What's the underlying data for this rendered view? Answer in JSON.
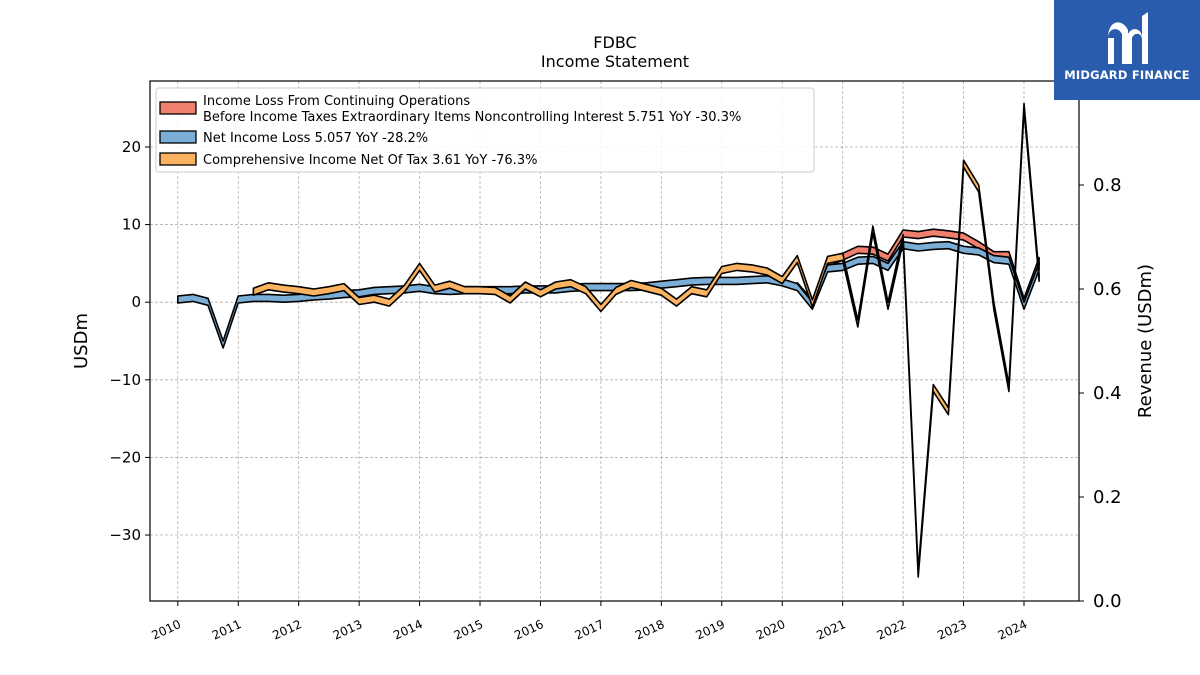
{
  "title": "FDBC",
  "subtitle": "Income Statement",
  "brand": {
    "name": "MIDGARD FINANCE",
    "color": "#2a5cad"
  },
  "chart_data": {
    "type": "area",
    "ylabel_left": "USDm",
    "ylabel_right": "Revenue (USDm)",
    "ylim_left": [
      -38.5,
      28.5
    ],
    "ylim_right": [
      0.0,
      1.0
    ],
    "yticks_left": [
      -30,
      -20,
      -10,
      0,
      10,
      20
    ],
    "ytick_labels_left": [
      "−30",
      "−20",
      "−10",
      "0",
      "10",
      "20"
    ],
    "yticks_right": [
      0.0,
      0.2,
      0.4,
      0.6,
      0.8
    ],
    "ytick_labels_right": [
      "0.0",
      "0.2",
      "0.4",
      "0.6",
      "0.8"
    ],
    "xlim": [
      2009.54,
      2024.91
    ],
    "xticks": [
      2010,
      2011,
      2012,
      2013,
      2014,
      2015,
      2016,
      2017,
      2018,
      2019,
      2020,
      2021,
      2022,
      2023,
      2024
    ],
    "xtick_labels": [
      "2010",
      "2011",
      "2012",
      "2013",
      "2014",
      "2015",
      "2016",
      "2017",
      "2018",
      "2019",
      "2020",
      "2021",
      "2022",
      "2023",
      "2024"
    ],
    "grid": true,
    "legend_position": "top-left",
    "series": [
      {
        "name": "Income Loss From Continuing Operations Before Income Taxes Extraordinary Items Noncontrolling Interest",
        "legend_line1": "Income Loss From Continuing Operations",
        "legend_line2": "Before Income Taxes Extraordinary Items Noncontrolling Interest  5.751 YoY -30.3%",
        "color": "#f07f6e",
        "x": [
          2020.25,
          2020.5,
          2020.75,
          2021.0,
          2021.25,
          2021.5,
          2021.75,
          2022.0,
          2022.25,
          2022.5,
          2022.75,
          2023.0,
          2023.25,
          2023.5,
          2023.75,
          2024.0,
          2024.25
        ],
        "values": [
          2.5,
          0.3,
          5.5,
          6.3,
          7.2,
          7.1,
          6.2,
          9.3,
          9.1,
          9.4,
          9.2,
          8.9,
          7.8,
          6.5,
          6.5,
          0.5,
          5.751
        ]
      },
      {
        "name": "Net Income Loss",
        "legend_line1": "Net Income Loss  5.057 YoY -28.2%",
        "color": "#7aaed6",
        "x": [
          2010.0,
          2010.25,
          2010.5,
          2010.75,
          2011.0,
          2011.25,
          2011.5,
          2011.75,
          2012.0,
          2012.25,
          2012.5,
          2012.75,
          2013.0,
          2013.25,
          2013.5,
          2013.75,
          2014.0,
          2014.25,
          2014.5,
          2014.75,
          2015.0,
          2015.25,
          2015.5,
          2015.75,
          2016.0,
          2016.25,
          2016.5,
          2016.75,
          2017.0,
          2017.25,
          2017.5,
          2017.75,
          2018.0,
          2018.25,
          2018.5,
          2018.75,
          2019.0,
          2019.25,
          2019.5,
          2019.75,
          2020.0,
          2020.25,
          2020.5,
          2020.75,
          2021.0,
          2021.25,
          2021.5,
          2021.75,
          2022.0,
          2022.25,
          2022.5,
          2022.75,
          2023.0,
          2023.25,
          2023.5,
          2023.75,
          2024.0,
          2024.25
        ],
        "values": [
          0.8,
          1.0,
          0.5,
          -5.0,
          0.8,
          1.0,
          1.0,
          0.9,
          1.0,
          1.2,
          1.3,
          1.5,
          1.6,
          1.9,
          2.0,
          2.1,
          2.3,
          2.0,
          1.9,
          2.0,
          2.0,
          2.0,
          2.0,
          2.1,
          2.1,
          2.1,
          2.3,
          2.4,
          2.4,
          2.4,
          2.4,
          2.5,
          2.7,
          2.9,
          3.1,
          3.2,
          3.2,
          3.2,
          3.3,
          3.4,
          3.0,
          2.4,
          0.0,
          4.8,
          5.0,
          5.8,
          5.9,
          5.0,
          7.8,
          7.5,
          7.7,
          7.8,
          7.2,
          7.0,
          6.0,
          5.8,
          0.0,
          5.057
        ]
      },
      {
        "name": "Comprehensive Income Net Of Tax",
        "legend_line1": "Comprehensive Income Net Of Tax  3.61 YoY -76.3%",
        "color": "#fbb361",
        "x": [
          2011.25,
          2011.5,
          2011.75,
          2012.0,
          2012.25,
          2012.5,
          2012.75,
          2013.0,
          2013.25,
          2013.5,
          2013.75,
          2014.0,
          2014.25,
          2014.5,
          2014.75,
          2015.0,
          2015.25,
          2015.5,
          2015.75,
          2016.0,
          2016.25,
          2016.5,
          2016.75,
          2017.0,
          2017.25,
          2017.5,
          2017.75,
          2018.0,
          2018.25,
          2018.5,
          2018.75,
          2019.0,
          2019.25,
          2019.5,
          2019.75,
          2020.0,
          2020.25,
          2020.5,
          2020.75,
          2021.0,
          2021.25,
          2021.5,
          2021.75,
          2022.0,
          2022.25,
          2022.5,
          2022.75,
          2023.0,
          2023.25,
          2023.5,
          2023.75,
          2024.0,
          2024.25
        ],
        "values": [
          1.8,
          2.5,
          2.2,
          2.0,
          1.7,
          2.0,
          2.4,
          0.6,
          0.9,
          0.4,
          2.2,
          5.0,
          2.2,
          2.7,
          2.0,
          2.0,
          1.9,
          0.8,
          2.6,
          1.6,
          2.6,
          2.9,
          2.0,
          -0.3,
          1.9,
          2.8,
          2.3,
          1.8,
          0.4,
          2.0,
          1.6,
          4.6,
          5.0,
          4.8,
          4.4,
          3.3,
          6.0,
          0.3,
          5.9,
          6.3,
          -2.3,
          9.8,
          0.0,
          8.7,
          -34.5,
          -10.6,
          -13.6,
          18.3,
          15.1,
          0.0,
          -10.6,
          25.6,
          3.61
        ]
      }
    ]
  }
}
